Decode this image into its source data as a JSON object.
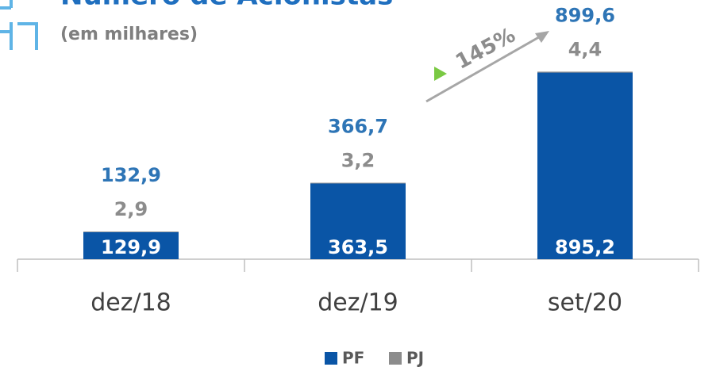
{
  "chart_data": {
    "type": "stacked_bar",
    "title": "Número de Acionistas",
    "subtitle": "(em milhares)",
    "categories": [
      "dez/18",
      "dez/19",
      "set/20"
    ],
    "series": [
      {
        "name": "PF",
        "color": "#0a55a6",
        "values": [
          129.9,
          363.5,
          895.2
        ],
        "value_labels": [
          "129,9",
          "363,5",
          "895,2"
        ]
      },
      {
        "name": "PJ",
        "color": "#8c8c8c",
        "values": [
          2.9,
          3.2,
          4.4
        ],
        "value_labels": [
          "2,9",
          "3,2",
          "4,4"
        ]
      }
    ],
    "totals": [
      132.9,
      366.7,
      899.6
    ],
    "total_labels": [
      "132,9",
      "366,7",
      "899,6"
    ],
    "annotation": "145%",
    "ylim": [
      0,
      1000
    ],
    "legend": "bottom"
  }
}
